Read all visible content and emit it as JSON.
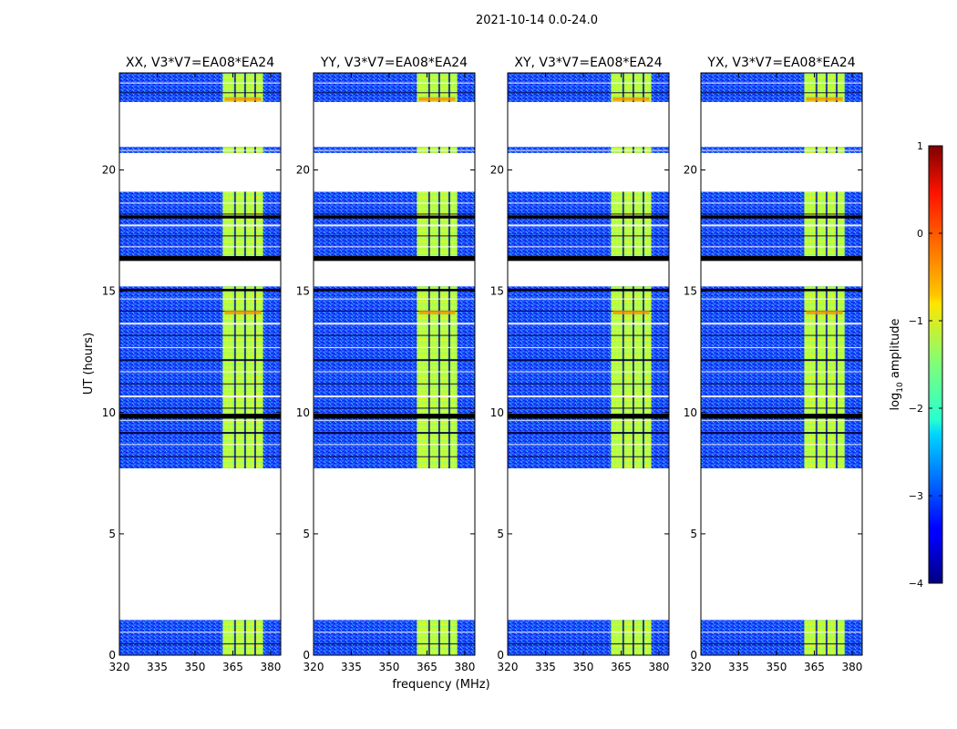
{
  "chart_data": {
    "type": "heatmap",
    "title": "2021-10-14 0.0-24.0",
    "xlabel": "frequency (MHz)",
    "ylabel": "UT (hours)",
    "xlim": [
      320,
      384
    ],
    "ylim": [
      0,
      24
    ],
    "xticks": [
      320,
      335,
      350,
      365,
      380
    ],
    "yticks": [
      0,
      5,
      10,
      15,
      20
    ],
    "colorbar": {
      "label": "log10 amplitude",
      "label_base": "log",
      "label_sub": "10",
      "label_rest": " amplitude",
      "range": [
        -4,
        1
      ],
      "ticks": [
        1,
        0,
        -1,
        -2,
        -3,
        -4
      ],
      "tick_labels": [
        "1",
        "0",
        "−1",
        "−2",
        "−3",
        "−4"
      ],
      "colormap": "jet"
    },
    "panels": [
      {
        "name": "XX",
        "title": "XX, V3*V7=EA08*EA24"
      },
      {
        "name": "YY",
        "title": "YY, V3*V7=EA08*EA24"
      },
      {
        "name": "XY",
        "title": "XY, V3*V7=EA08*EA24"
      },
      {
        "name": "YX",
        "title": "YX, V3*V7=EA08*EA24"
      }
    ],
    "data_time_ranges_hours": [
      [
        0.0,
        1.45
      ],
      [
        7.7,
        15.2
      ],
      [
        16.4,
        19.1
      ],
      [
        20.7,
        20.95
      ],
      [
        22.8,
        24.0
      ]
    ],
    "rfi_band_mhz": [
      361,
      377
    ],
    "background_log_amplitude": -2.9,
    "rfi_log_amplitude": -1.3
  }
}
